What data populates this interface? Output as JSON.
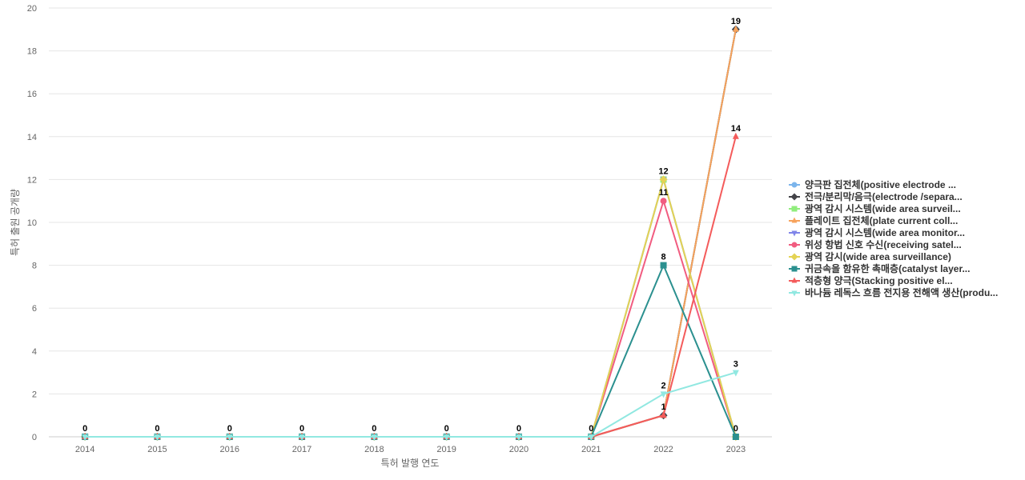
{
  "chart_data": {
    "type": "line",
    "xlabel": "특허 발행 연도",
    "ylabel": "특허 출원 공개량",
    "ylim": [
      0,
      20
    ],
    "yticks": [
      0,
      2,
      4,
      6,
      8,
      10,
      12,
      14,
      16,
      18,
      20
    ],
    "grid": true,
    "legend_position": "right",
    "x": [
      "2014",
      "2015",
      "2016",
      "2017",
      "2018",
      "2019",
      "2020",
      "2021",
      "2022",
      "2023"
    ],
    "series": [
      {
        "name": "양극판 집전체(positive electrode ...",
        "color": "#7cb5ec",
        "marker": "circle",
        "values": [
          0,
          0,
          0,
          0,
          0,
          0,
          0,
          0,
          1,
          19
        ]
      },
      {
        "name": "전극/분리막/음극(electrode /separa...",
        "color": "#434348",
        "marker": "diamond",
        "values": [
          0,
          0,
          0,
          0,
          0,
          0,
          0,
          0,
          1,
          19
        ]
      },
      {
        "name": "광역 감시 시스템(wide area surveil...",
        "color": "#90ed7d",
        "marker": "square",
        "values": [
          0,
          0,
          0,
          0,
          0,
          0,
          0,
          0,
          12,
          0
        ]
      },
      {
        "name": "플레이트 집전체(plate current coll...",
        "color": "#f7a35c",
        "marker": "triangle",
        "values": [
          0,
          0,
          0,
          0,
          0,
          0,
          0,
          0,
          1,
          19
        ]
      },
      {
        "name": "광역 감시 시스템(wide area monitor...",
        "color": "#8085e9",
        "marker": "triangle-down",
        "values": [
          0,
          0,
          0,
          0,
          0,
          0,
          0,
          0,
          12,
          0
        ]
      },
      {
        "name": "위성 항법 신호 수신(receiving satel...",
        "color": "#f15c80",
        "marker": "circle",
        "values": [
          0,
          0,
          0,
          0,
          0,
          0,
          0,
          0,
          11,
          0
        ]
      },
      {
        "name": "광역 감시(wide area surveillance)",
        "color": "#e4d354",
        "marker": "diamond",
        "values": [
          0,
          0,
          0,
          0,
          0,
          0,
          0,
          0,
          12,
          0
        ]
      },
      {
        "name": "귀금속을 함유한 촉매층(catalyst layer...",
        "color": "#2b908f",
        "marker": "square",
        "values": [
          0,
          0,
          0,
          0,
          0,
          0,
          0,
          0,
          8,
          0
        ]
      },
      {
        "name": "적층형 양극(Stacking positive el...",
        "color": "#f45b5b",
        "marker": "triangle",
        "values": [
          0,
          0,
          0,
          0,
          0,
          0,
          0,
          0,
          1,
          14
        ]
      },
      {
        "name": "바나듐 레독스 흐름 전지용 전해액 생산(produ...",
        "color": "#91e8e1",
        "marker": "triangle-down",
        "values": [
          0,
          0,
          0,
          0,
          0,
          0,
          0,
          0,
          2,
          3
        ]
      }
    ],
    "data_labels": [
      {
        "x": "2014",
        "value": 0
      },
      {
        "x": "2015",
        "value": 0
      },
      {
        "x": "2016",
        "value": 0
      },
      {
        "x": "2017",
        "value": 0
      },
      {
        "x": "2018",
        "value": 0
      },
      {
        "x": "2019",
        "value": 0
      },
      {
        "x": "2020",
        "value": 0
      },
      {
        "x": "2021",
        "value": 0
      },
      {
        "x": "2022",
        "value": 12
      },
      {
        "x": "2022",
        "value": 11
      },
      {
        "x": "2022",
        "value": 8
      },
      {
        "x": "2022",
        "value": 2
      },
      {
        "x": "2022",
        "value": 1
      },
      {
        "x": "2023",
        "value": 19
      },
      {
        "x": "2023",
        "value": 14
      },
      {
        "x": "2023",
        "value": 3
      },
      {
        "x": "2023",
        "value": 0
      }
    ]
  }
}
